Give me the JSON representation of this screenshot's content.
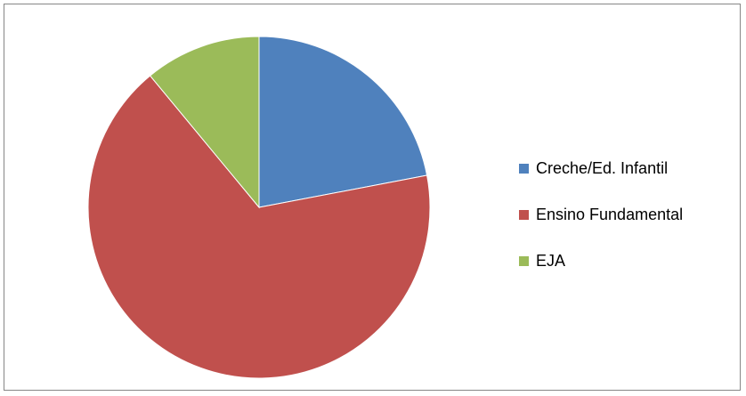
{
  "chart_data": {
    "type": "pie",
    "title": "",
    "categories": [
      "Creche/Ed. Infantil",
      "Ensino Fundamental",
      "EJA"
    ],
    "values": [
      22,
      67,
      11
    ],
    "colors": [
      "#4f81bd",
      "#c0504d",
      "#9bbb59"
    ],
    "legend_position": "right"
  }
}
